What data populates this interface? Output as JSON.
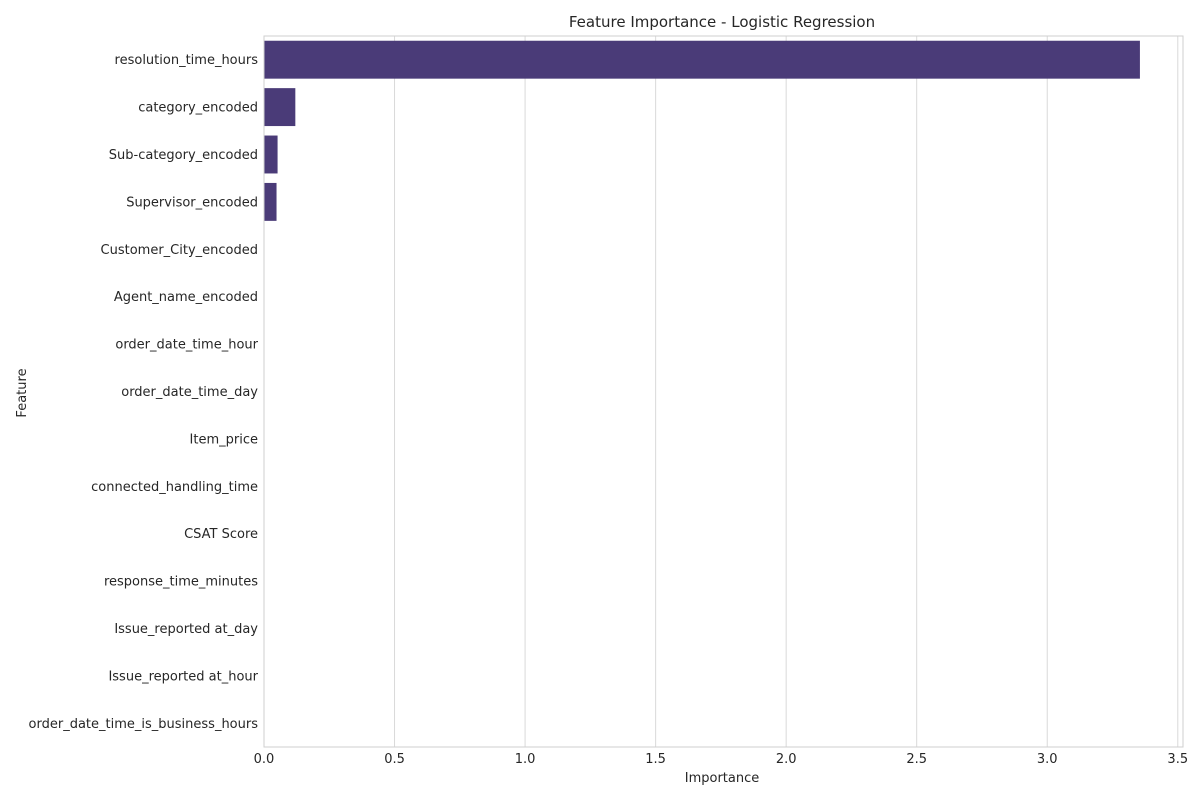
{
  "chart_data": {
    "type": "bar",
    "orientation": "horizontal",
    "title": "Feature Importance - Logistic Regression",
    "xlabel": "Importance",
    "ylabel": "Feature",
    "xlim": [
      0,
      3.52
    ],
    "xticks": [
      "0.0",
      "0.5",
      "1.0",
      "1.5",
      "2.0",
      "2.5",
      "3.0",
      "3.5"
    ],
    "grid": true,
    "bar_color": "#4a3b78",
    "categories": [
      "resolution_time_hours",
      "category_encoded",
      "Sub-category_encoded",
      "Supervisor_encoded",
      "Customer_City_encoded",
      "Agent_name_encoded",
      "order_date_time_hour",
      "order_date_time_day",
      "Item_price",
      "connected_handling_time",
      "CSAT Score",
      "response_time_minutes",
      "Issue_reported at_day",
      "Issue_reported at_hour",
      "order_date_time_is_business_hours"
    ],
    "values": [
      3.355,
      0.12,
      0.052,
      0.048,
      0.0,
      0.0,
      0.0,
      0.0,
      0.0,
      0.0,
      0.0,
      0.0,
      0.0,
      0.0,
      0.0
    ]
  }
}
